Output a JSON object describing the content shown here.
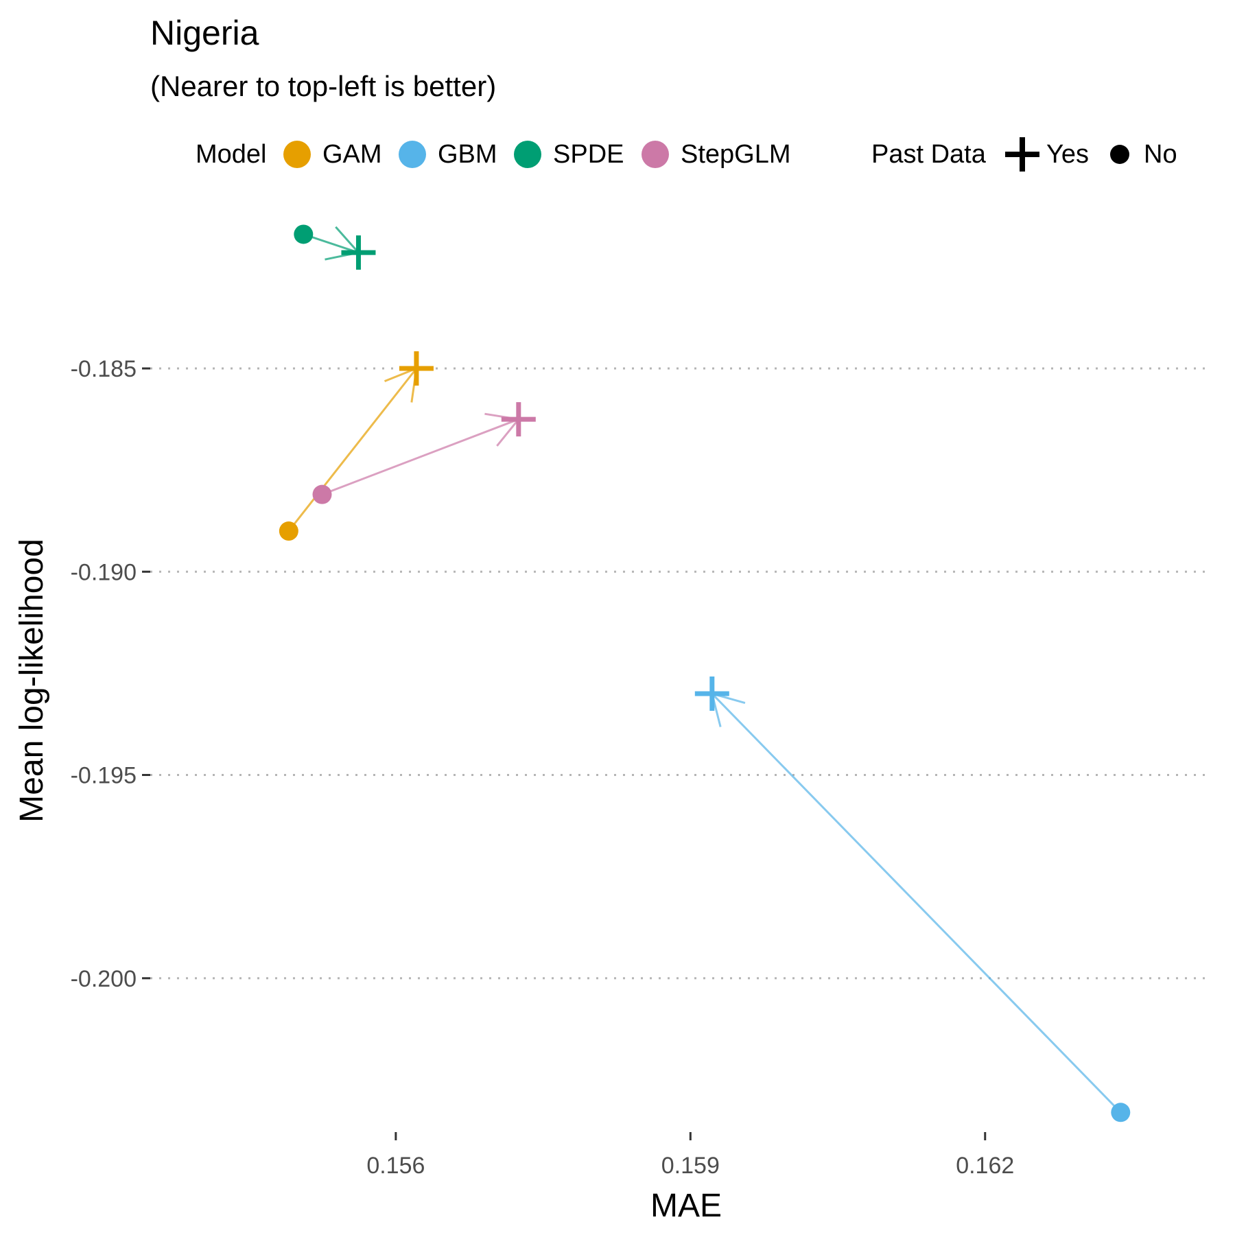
{
  "chart_data": {
    "type": "scatter",
    "title": "Nigeria",
    "subtitle": "(Nearer to top-left is better)",
    "xlabel": "MAE",
    "ylabel": "Mean log-likelihood",
    "xlim": [
      0.1535,
      0.1643
    ],
    "ylim": [
      -0.2037,
      -0.181
    ],
    "x_ticks": [
      0.156,
      0.159,
      0.162
    ],
    "x_tick_labels": [
      "0.156",
      "0.159",
      "0.162"
    ],
    "y_ticks": [
      -0.185,
      -0.19,
      -0.195,
      -0.2
    ],
    "y_tick_labels": [
      "-0.185",
      "-0.190",
      "-0.195",
      "-0.200"
    ],
    "grid": "horizontal dotted major lines",
    "legend_position": "top",
    "legend": {
      "model_title": "Model",
      "model_entries": [
        "GAM",
        "GBM",
        "SPDE",
        "StepGLM"
      ],
      "past_data_title": "Past Data",
      "past_data_entries": [
        "Yes",
        "No"
      ]
    },
    "colors": {
      "GAM": "#E69F00",
      "GBM": "#56B4E9",
      "SPDE": "#009E73",
      "StepGLM": "#CC79A7"
    },
    "series": [
      {
        "name": "GAM",
        "no_past_data": {
          "x": 0.15491,
          "y": -0.189
        },
        "past_data": {
          "x": 0.15621,
          "y": -0.185
        }
      },
      {
        "name": "GBM",
        "no_past_data": {
          "x": 0.16338,
          "y": -0.2033
        },
        "past_data": {
          "x": 0.15922,
          "y": -0.193
        }
      },
      {
        "name": "SPDE",
        "no_past_data": {
          "x": 0.15506,
          "y": -0.1817
        },
        "past_data": {
          "x": 0.15562,
          "y": -0.18215
        }
      },
      {
        "name": "StepGLM",
        "no_past_data": {
          "x": 0.15525,
          "y": -0.1881
        },
        "past_data": {
          "x": 0.15725,
          "y": -0.18625
        }
      }
    ]
  }
}
